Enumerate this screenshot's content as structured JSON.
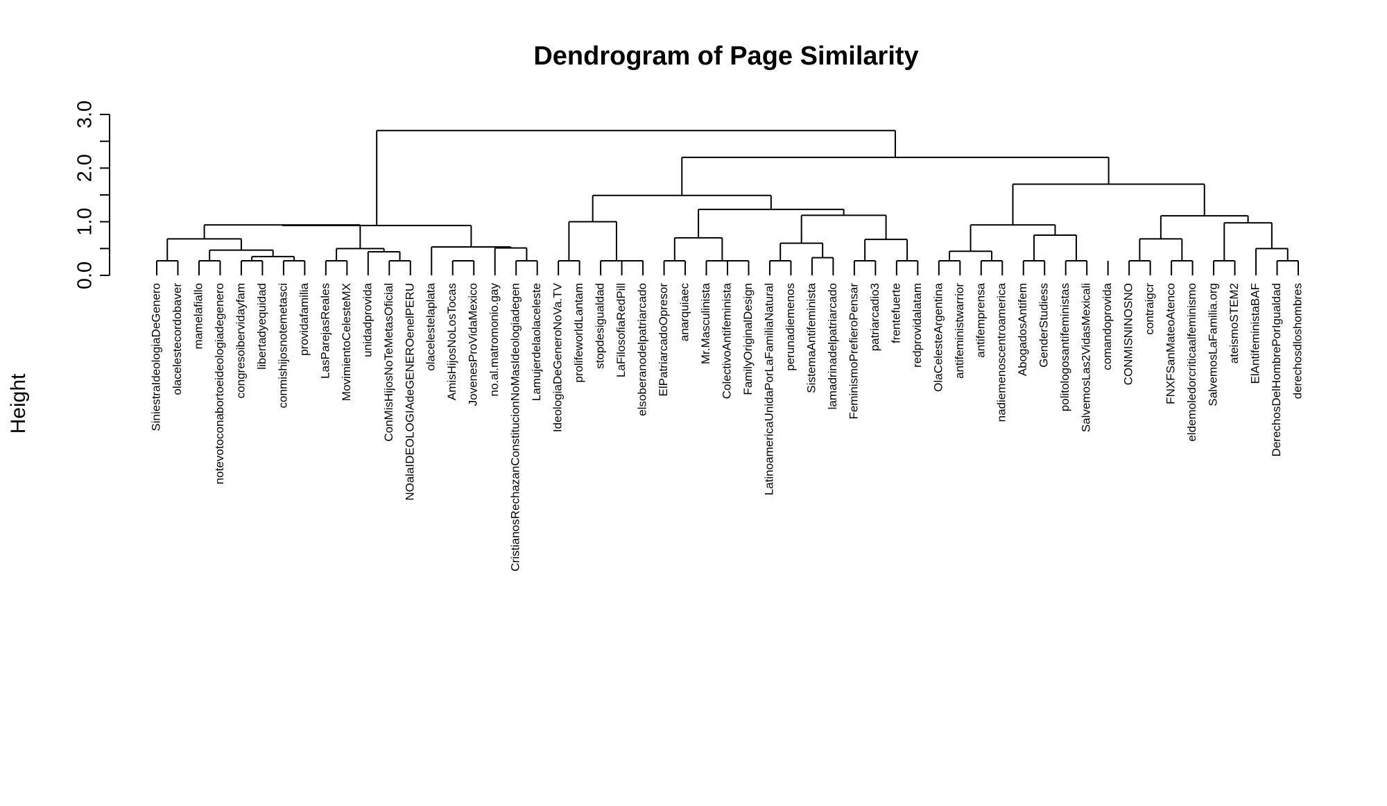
{
  "chart_data": {
    "type": "dendrogram",
    "title": "Dendrogram of Page Similarity",
    "ylabel": "Height",
    "ylim": [
      0,
      3.0
    ],
    "y_ticks": [
      0.0,
      0.5,
      1.0,
      1.5,
      2.0,
      2.5,
      3.0
    ],
    "y_tick_labels": [
      "0.0",
      "",
      "1.0",
      "",
      "2.0",
      "",
      "3.0"
    ],
    "leaves": [
      "SiniestraIdeologiaDeGenero",
      "olacelestecordobaver",
      "mamelafiallo",
      "notevotoconabortoeideologiadegenero",
      "congresoibervidayfam",
      "libertadyequidad",
      "conmishijosnotemetasci",
      "providafamilia",
      "LasParejasReales",
      "MovimientoCelesteMX",
      "unidadprovida",
      "ConMisHijosNoTeMetasOficial",
      "NOalaIDEOLOGIAdeGENEROenelPERU",
      "olacelestelaplata",
      "AmisHijosNoLosTocas",
      "JovenesProVidaMexico",
      "no.al.matromonio.gay",
      "CristianosRechazanConstitucionNoMasIdeologiadegen",
      "Lamujerdelaolaceleste",
      "IdeologiaDeGeneroNoVa.TV",
      "prolifeworldLantam",
      "stopdesigualdad",
      "LaFilosofiaRedPill",
      "elsoberanodelpatriarcado",
      "ElPatriarcadoOpresor",
      "anarquiaec",
      "Mr.Masculinista",
      "ColectivoAntifeminista",
      "FamilyOriginalDesign",
      "LatinoamericaUnidaPorLaFamiliaNatural",
      "perunadiemenos",
      "SistemaAntifeminista",
      "lamadrinadelpatriarcado",
      "FeminismoPrefieroPensar",
      "patriarcadio3",
      "frentefuerte",
      "redprovidalatam",
      "OlaCelesteArgentina",
      "antifeministwarrior",
      "antifemprensa",
      "nadiemenoscentroamerica",
      "AbogadosAntifem",
      "GenderStudiess",
      "politologosantifeministas",
      "SalvemosLas2VidasMexicali",
      "comandoprovida",
      "CONMISNINOSNO",
      "contraigcr",
      "FNXFSanMateoAtenco",
      "eldemoledorcriticaalfeminismo",
      "SalvemosLaFamilia.org",
      "ateismoSTEM2",
      "ElAntifeministaBAF",
      "DerechosDelHombrePorIgualdad",
      "derechosdloshombres"
    ],
    "merges": [
      [
        0,
        1,
        0.0
      ],
      [
        2,
        3,
        0.0
      ],
      [
        4,
        5,
        0.0
      ],
      [
        6,
        7,
        0.0
      ],
      [
        8,
        9,
        0.0
      ],
      [
        11,
        12,
        0.0
      ],
      [
        14,
        15,
        0.0
      ],
      [
        17,
        18,
        0.0
      ],
      [
        19,
        20,
        0.0
      ],
      [
        22,
        23,
        0.0
      ],
      [
        24,
        25,
        0.0
      ],
      [
        27,
        28,
        0.0
      ],
      [
        33,
        34,
        0.0
      ],
      [
        35,
        36,
        0.0
      ],
      [
        37,
        38,
        0.0
      ],
      [
        39,
        40,
        0.0
      ],
      [
        41,
        42,
        0.0
      ],
      [
        43,
        44,
        0.0
      ],
      [
        46,
        47,
        0.0
      ],
      [
        48,
        49,
        0.0
      ],
      [
        53,
        54,
        0.0
      ],
      [
        50,
        51,
        0.04
      ],
      [
        29,
        30,
        0.17
      ],
      [
        21,
        22,
        0.17
      ],
      [
        26,
        27,
        0.27
      ],
      [
        31,
        32,
        0.33
      ],
      [
        5,
        6,
        0.35
      ],
      [
        3,
        5,
        0.47
      ],
      [
        10,
        11,
        0.44
      ],
      [
        8,
        10,
        0.5
      ],
      [
        16,
        17,
        0.51
      ],
      [
        13,
        16,
        0.53
      ],
      [
        52,
        53,
        0.5
      ],
      [
        29,
        31,
        0.6
      ],
      [
        33,
        35,
        0.67
      ],
      [
        29,
        33,
        1.12
      ],
      [
        24,
        26,
        0.7
      ],
      [
        24,
        29,
        1.23
      ],
      [
        46,
        48,
        0.68
      ],
      [
        50,
        52,
        0.98
      ],
      [
        46,
        50,
        1.11
      ],
      [
        37,
        39,
        0.45
      ],
      [
        41,
        43,
        0.75
      ],
      [
        37,
        41,
        0.94
      ],
      [
        37,
        46,
        1.7
      ],
      [
        0,
        2,
        0.68
      ],
      [
        0,
        8,
        0.94
      ],
      [
        0,
        13,
        0.93
      ],
      [
        19,
        21,
        1.0
      ],
      [
        19,
        24,
        1.49
      ],
      [
        19,
        37,
        2.2
      ],
      [
        0,
        19,
        2.7
      ]
    ]
  }
}
